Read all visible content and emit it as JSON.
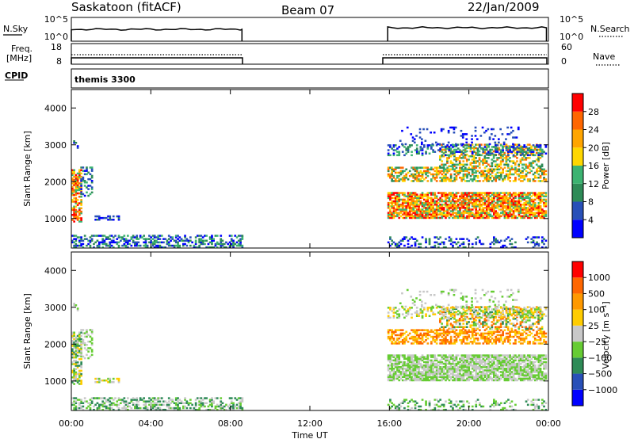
{
  "header": {
    "station": "Saskatoon (fitACF)",
    "beam": "Beam 07",
    "date": "22/Jan/2009"
  },
  "labels": {
    "nsky": "N.Sky",
    "nsearch": "N.Search",
    "freq_line1": "Freq.",
    "freq_line2": "[MHz]",
    "nave": "Nave",
    "cpid": "CPID",
    "program": "themis 3300",
    "time_axis": "Time UT",
    "slant_range": "Slant Range [km]",
    "power": "Power [dB]",
    "velocity": "Velocity [m s⁻¹]"
  },
  "noise_panel": {
    "left_ticks": [
      "10^5",
      "10^0"
    ],
    "right_ticks": [
      "10^5",
      "10^0"
    ]
  },
  "freq_panel": {
    "left_ticks": [
      "18",
      "8"
    ],
    "right_ticks": [
      "60",
      "0"
    ]
  },
  "colors": {
    "power": [
      "#0000ff",
      "#2850b8",
      "#2e8b57",
      "#3cb371",
      "#ffd700",
      "#ffa500",
      "#ff6600",
      "#ff0000"
    ],
    "velocity": [
      "#ff0000",
      "#ff6600",
      "#ff9900",
      "#ffcc00",
      "#c8c8c8",
      "#66cc33",
      "#2e8b57",
      "#2850b8",
      "#0000ff"
    ]
  },
  "chart_data": [
    {
      "type": "heatmap",
      "name": "power",
      "x_range": [
        "00:00",
        "24:00"
      ],
      "x_ticks": [
        "00:00",
        "04:00",
        "08:00",
        "12:00",
        "16:00",
        "20:00",
        "00:00"
      ],
      "ylim": [
        200,
        4500
      ],
      "y_ticks": [
        1000,
        2000,
        3000,
        4000
      ],
      "colorbar_ticks": [
        "4",
        "8",
        "12",
        "16",
        "20",
        "24",
        "28"
      ],
      "data_gaps": [
        [
          "08:35",
          "15:55"
        ]
      ]
    },
    {
      "type": "heatmap",
      "name": "velocity",
      "x_range": [
        "00:00",
        "24:00"
      ],
      "x_ticks": [
        "00:00",
        "04:00",
        "08:00",
        "12:00",
        "16:00",
        "20:00",
        "00:00"
      ],
      "ylim": [
        200,
        4500
      ],
      "y_ticks": [
        1000,
        2000,
        3000,
        4000
      ],
      "colorbar_ticks": [
        "1000",
        "500",
        "100",
        "25",
        "−25",
        "−100",
        "−500",
        "−1000"
      ],
      "data_gaps": [
        [
          "08:35",
          "15:55"
        ]
      ]
    }
  ]
}
